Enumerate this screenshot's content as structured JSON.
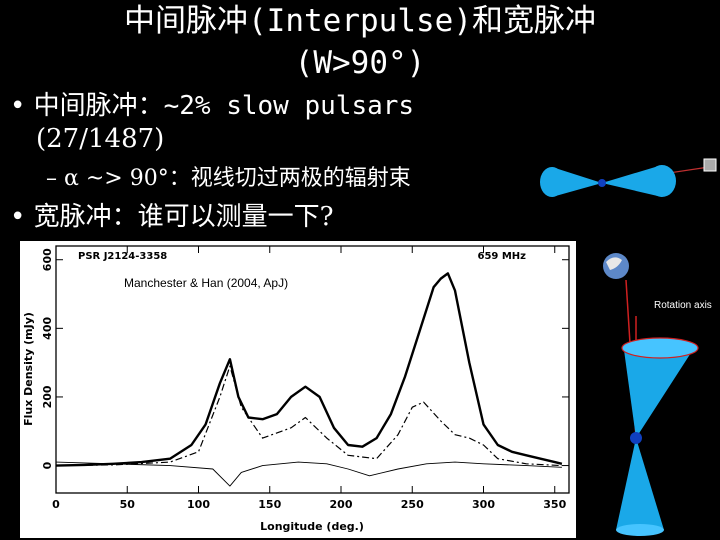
{
  "slide": {
    "title_line1": "中间脉冲(Interpulse)和宽脉冲",
    "title_line2": "(W>90°)",
    "bullet1_label": "• 中间脉冲：",
    "bullet1_text": "~2% slow pulsars",
    "bullet1_count": "(27/1487)",
    "sub_bullet": "– α ~> 90°：视线切过两极的辐射束",
    "bullet2": "• 宽脉冲：谁可以测量一下?",
    "rotation_axis_label": "Rotation axis"
  },
  "figure": {
    "pulsar_name": "PSR J2124-3358",
    "frequency": "659 MHz",
    "citation": "Manchester & Han (2004, ApJ)"
  },
  "chart_data": {
    "type": "line",
    "xlabel": "Longitude (deg.)",
    "ylabel": "Flux Density (mJy)",
    "xlim": [
      0,
      360
    ],
    "ylim": [
      -80,
      640
    ],
    "x_ticks": [
      0,
      50,
      100,
      150,
      200,
      250,
      300,
      350
    ],
    "y_ticks": [
      0,
      200,
      400,
      600
    ],
    "x_tick_labels": [
      "0",
      "50",
      "100",
      "150",
      "200",
      "250",
      "300",
      "350"
    ],
    "y_tick_labels": [
      "0",
      "200",
      "400",
      "600"
    ],
    "grid": false,
    "series": [
      {
        "style": "solid-thick",
        "x": [
          0,
          20,
          40,
          60,
          80,
          95,
          105,
          115,
          122,
          128,
          135,
          145,
          155,
          165,
          175,
          185,
          195,
          205,
          215,
          225,
          235,
          245,
          255,
          265,
          270,
          275,
          280,
          290,
          300,
          310,
          320,
          330,
          340,
          350,
          355
        ],
        "y": [
          0,
          2,
          5,
          10,
          20,
          60,
          120,
          240,
          310,
          200,
          140,
          135,
          150,
          200,
          230,
          200,
          110,
          60,
          55,
          80,
          150,
          260,
          390,
          520,
          545,
          560,
          510,
          300,
          120,
          60,
          40,
          30,
          20,
          10,
          5
        ]
      },
      {
        "style": "dash-dot",
        "x": [
          0,
          40,
          80,
          100,
          115,
          122,
          130,
          145,
          165,
          175,
          190,
          205,
          225,
          240,
          250,
          258,
          270,
          280,
          290,
          300,
          310,
          330,
          355
        ],
        "y": [
          0,
          2,
          10,
          40,
          200,
          290,
          170,
          80,
          110,
          140,
          80,
          30,
          20,
          90,
          170,
          185,
          130,
          90,
          80,
          60,
          20,
          5,
          0
        ]
      },
      {
        "style": "solid-thin",
        "x": [
          0,
          40,
          80,
          110,
          122,
          130,
          145,
          170,
          190,
          205,
          220,
          240,
          260,
          280,
          300,
          330,
          355
        ],
        "y": [
          10,
          5,
          0,
          -10,
          -60,
          -20,
          0,
          10,
          5,
          -10,
          -30,
          -10,
          5,
          10,
          5,
          0,
          -5
        ]
      }
    ]
  }
}
